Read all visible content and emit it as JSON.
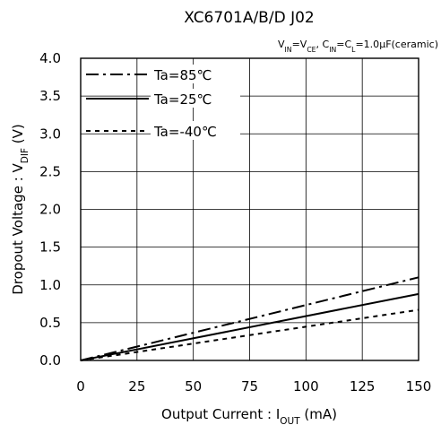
{
  "chart_data": {
    "type": "line",
    "title": "XC6701A/B/D J02",
    "conditions": {
      "parts": [
        {
          "text": "V",
          "sub": "IN"
        },
        {
          "text": "=V",
          "sub": "CE"
        },
        {
          "text": ", C",
          "sub": "IN"
        },
        {
          "text": "=C",
          "sub": "L"
        },
        {
          "text": "=1.0",
          "sub": ""
        },
        {
          "text": "μ",
          "sub": ""
        },
        {
          "text": "F(ceramic)",
          "sub": ""
        }
      ]
    },
    "xlabel": {
      "pre": "Output Current : I",
      "sub": "OUT",
      "post": " (mA)"
    },
    "ylabel": {
      "pre": "Dropout Voltage : V",
      "sub": "DIF",
      "post": " (V)"
    },
    "xlim": [
      0,
      150
    ],
    "ylim": [
      0,
      4.0
    ],
    "xticks": [
      "0",
      "25",
      "50",
      "75",
      "100",
      "125",
      "150"
    ],
    "yticks": [
      "0.0",
      "0.5",
      "1.0",
      "1.5",
      "2.0",
      "2.5",
      "3.0",
      "3.5",
      "4.0"
    ],
    "xtick_values": [
      0,
      25,
      50,
      75,
      100,
      125,
      150
    ],
    "ytick_values": [
      0,
      0.5,
      1.0,
      1.5,
      2.0,
      2.5,
      3.0,
      3.5,
      4.0
    ],
    "grid": true,
    "legend_position": "top-left",
    "series": [
      {
        "name": "Ta=85℃",
        "style": "dashdot",
        "x": [
          0,
          150
        ],
        "y": [
          0,
          1.1
        ]
      },
      {
        "name": "Ta=25℃",
        "style": "solid",
        "x": [
          0,
          150
        ],
        "y": [
          0,
          0.88
        ]
      },
      {
        "name": "Ta=-40℃",
        "style": "dotted",
        "x": [
          0,
          150
        ],
        "y": [
          0,
          0.67
        ]
      }
    ]
  }
}
